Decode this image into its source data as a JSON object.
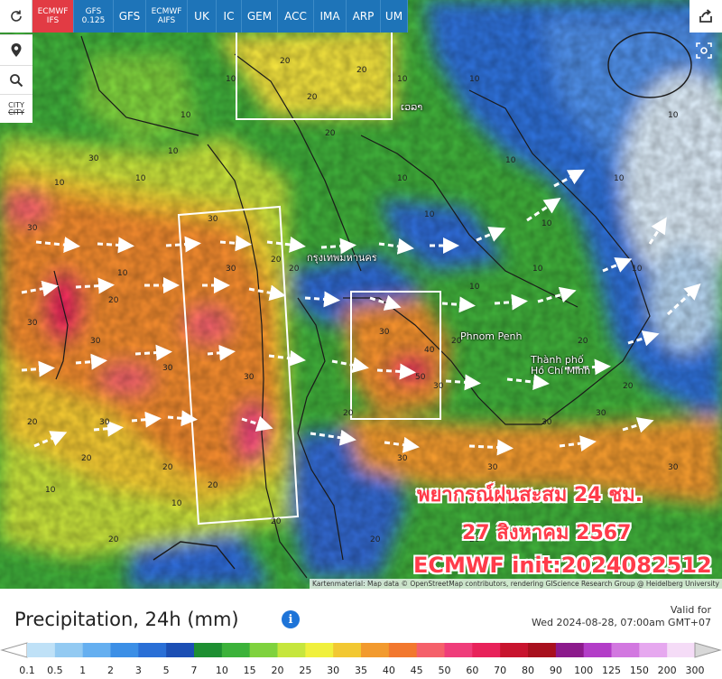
{
  "toolbar": {
    "models": [
      {
        "label": "ECMWF",
        "sub": "IFS",
        "active": true
      },
      {
        "label": "GFS",
        "sub": "0.125",
        "active": false
      },
      {
        "label": "GFS",
        "sub": "",
        "active": false
      },
      {
        "label": "ECMWF",
        "sub": "AIFS",
        "active": false
      },
      {
        "label": "UK",
        "sub": "",
        "active": false
      },
      {
        "label": "IC",
        "sub": "",
        "active": false
      },
      {
        "label": "GEM",
        "sub": "",
        "active": false
      },
      {
        "label": "ACC",
        "sub": "",
        "active": false
      },
      {
        "label": "IMA",
        "sub": "",
        "active": false
      },
      {
        "label": "ARP",
        "sub": "",
        "active": false
      },
      {
        "label": "UM",
        "sub": "",
        "active": false
      }
    ],
    "city_label_top": "CITY",
    "city_label_bottom": "CITY"
  },
  "map": {
    "places": [
      {
        "name": "กรุงเทพมหานคร"
      },
      {
        "name": "Phnom Penh"
      },
      {
        "name": "Thành phố"
      },
      {
        "name": "Hồ Chí Minh"
      },
      {
        "name": "ເວລາ"
      }
    ],
    "contour_values": [
      "10",
      "20",
      "30",
      "40",
      "50"
    ],
    "overlay": {
      "line1": "พยากรณ์ฝนสะสม 24 ชม.",
      "line2": "27 สิงหาคม 2567",
      "line3": "ECMWF init:2024082512"
    },
    "attribution": "Kartenmaterial: Map data © OpenStreetMap contributors, rendering GIScience Research Group @ Heidelberg University"
  },
  "legend": {
    "title": "Precipitation, 24h (mm)",
    "info_symbol": "i",
    "valid_label": "Valid for",
    "valid_time": "Wed 2024-08-28, 07:00am GMT+07",
    "ticks": [
      "0.1",
      "0.5",
      "1",
      "2",
      "3",
      "5",
      "7",
      "10",
      "15",
      "20",
      "25",
      "30",
      "35",
      "40",
      "45",
      "50",
      "60",
      "70",
      "80",
      "90",
      "100",
      "125",
      "150",
      "200",
      "300"
    ],
    "colors": [
      "#bfe1f7",
      "#93caf2",
      "#65aff0",
      "#3c8fe6",
      "#2a6fd6",
      "#1c4fb4",
      "#1e8f32",
      "#3cb23a",
      "#7fd23e",
      "#c6e63d",
      "#f0f03d",
      "#f2c832",
      "#f29a2e",
      "#f2782e",
      "#f5606a",
      "#ef3d7a",
      "#e8225a",
      "#c8142e",
      "#a8101e",
      "#8c1a8c",
      "#b33dc8",
      "#d278e0",
      "#e6a8ef",
      "#f5dcf7",
      "#d8d8d8"
    ],
    "accent_info_color": "#1e74d8"
  }
}
